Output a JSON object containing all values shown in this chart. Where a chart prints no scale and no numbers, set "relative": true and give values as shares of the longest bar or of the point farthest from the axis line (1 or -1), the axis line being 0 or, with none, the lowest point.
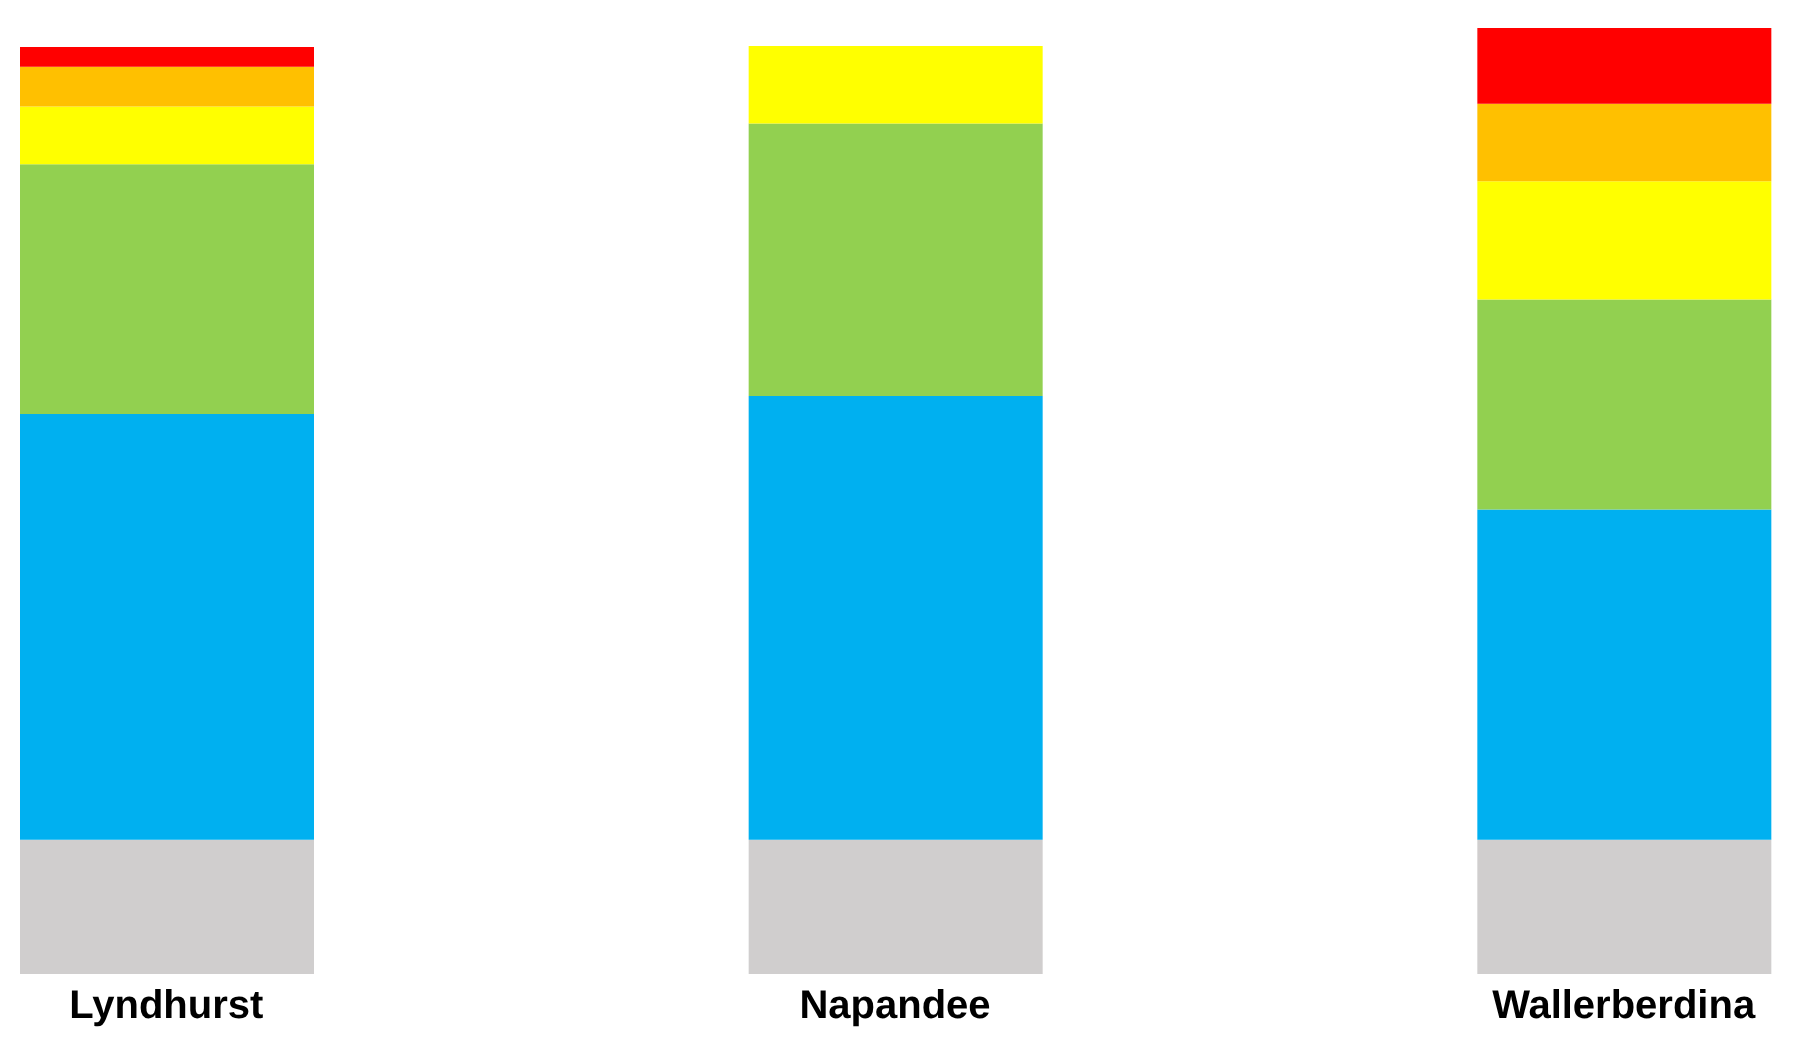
{
  "chart_data": {
    "type": "bar",
    "stacked": true,
    "relative": true,
    "categories": [
      "Lyndhurst",
      "Napandee",
      "Wallerberdina"
    ],
    "series": [
      {
        "color": "#d0cece",
        "values": [
          0.142,
          0.142,
          0.142
        ]
      },
      {
        "color": "#00b0f0",
        "values": [
          0.45,
          0.469,
          0.349
        ]
      },
      {
        "color": "#92d050",
        "values": [
          0.264,
          0.288,
          0.222
        ]
      },
      {
        "color": "#ffff00",
        "values": [
          0.061,
          0.082,
          0.125
        ]
      },
      {
        "color": "#ffc000",
        "values": [
          0.042,
          null,
          0.082
        ]
      },
      {
        "color": "#ff0000",
        "values": [
          0.021,
          null,
          0.08
        ]
      }
    ]
  }
}
